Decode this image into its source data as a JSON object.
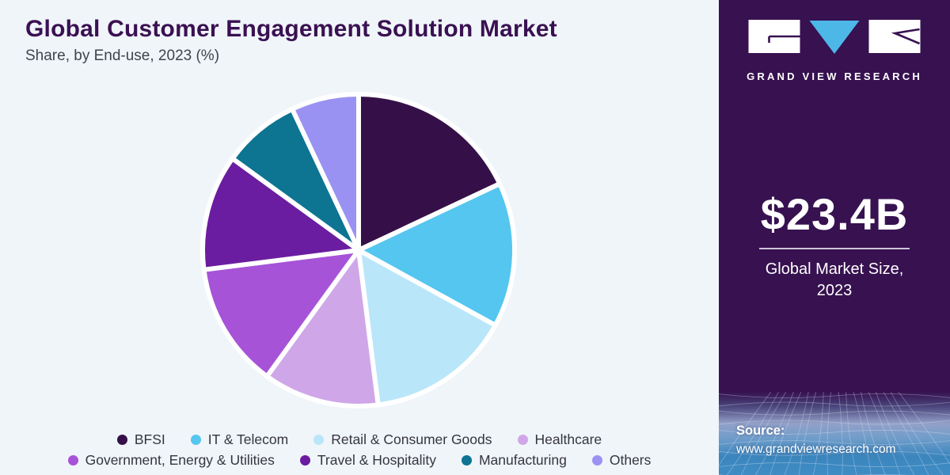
{
  "header": {
    "title": "Global Customer Engagement Solution Market",
    "subtitle": "Share, by End-use, 2023 (%)"
  },
  "chart_data": {
    "type": "pie",
    "title": "Global Customer Engagement Solution Market Share, by End-use, 2023 (%)",
    "unit": "%",
    "categories": [
      "BFSI",
      "IT & Telecom",
      "Retail & Consumer Goods",
      "Healthcare",
      "Government, Energy & Utilities",
      "Travel & Hospitality",
      "Manufacturing",
      "Others"
    ],
    "values": [
      18,
      15,
      15,
      12,
      13,
      12,
      8,
      7
    ],
    "colors": [
      "#351048",
      "#54c6f0",
      "#b9e6f9",
      "#cfa7e8",
      "#a653d8",
      "#6a1da0",
      "#0d7492",
      "#9a92f2"
    ],
    "start_angle_deg": 0,
    "direction": "clockwise",
    "legend_position": "bottom",
    "data_labels_shown": false,
    "slice_gap_color": "#ffffff"
  },
  "sidebar": {
    "brand_name": "GRAND VIEW RESEARCH",
    "stat": {
      "value": "$23.4B",
      "label_line1": "Global Market Size,",
      "label_line2": "2023"
    },
    "source": {
      "label": "Source:",
      "url": "www.grandviewresearch.com"
    }
  },
  "colors": {
    "page_bg": "#f0f5fa",
    "sidebar_bg": "#371150",
    "title_text": "#3a1152",
    "subtitle_text": "#42424c",
    "legend_text": "#35353f",
    "logo_triangle": "#4db7e8",
    "logo_blocks": "#ffffff"
  }
}
